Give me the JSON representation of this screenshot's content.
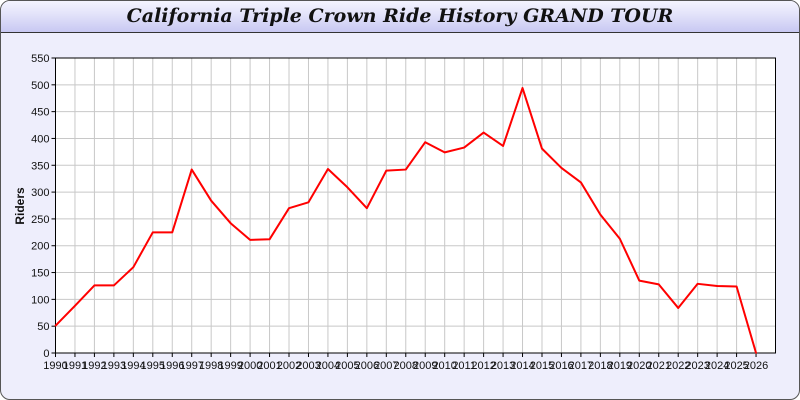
{
  "chart_data": {
    "type": "line",
    "title": "California Triple Crown Ride History GRAND TOUR",
    "xlabel": "",
    "ylabel": "Riders",
    "xlim": [
      1990,
      2027
    ],
    "ylim": [
      0,
      550
    ],
    "y_ticks": [
      0,
      50,
      100,
      150,
      200,
      250,
      300,
      350,
      400,
      450,
      500,
      550
    ],
    "grid": true,
    "line_color": "#ff0000",
    "x": [
      1990,
      1991,
      1992,
      1993,
      1994,
      1995,
      1996,
      1997,
      1998,
      1999,
      2000,
      2001,
      2002,
      2003,
      2004,
      2005,
      2006,
      2007,
      2008,
      2009,
      2010,
      2011,
      2012,
      2013,
      2014,
      2015,
      2016,
      2017,
      2018,
      2019,
      2020,
      2021,
      2022,
      2023,
      2024,
      2025,
      2026
    ],
    "values": [
      51,
      88,
      126,
      126,
      160,
      225,
      225,
      342,
      284,
      242,
      211,
      212,
      270,
      281,
      343,
      309,
      270,
      340,
      342,
      393,
      374,
      383,
      411,
      386,
      494,
      381,
      345,
      318,
      258,
      213,
      135,
      128,
      84,
      129,
      125,
      124,
      0
    ]
  }
}
